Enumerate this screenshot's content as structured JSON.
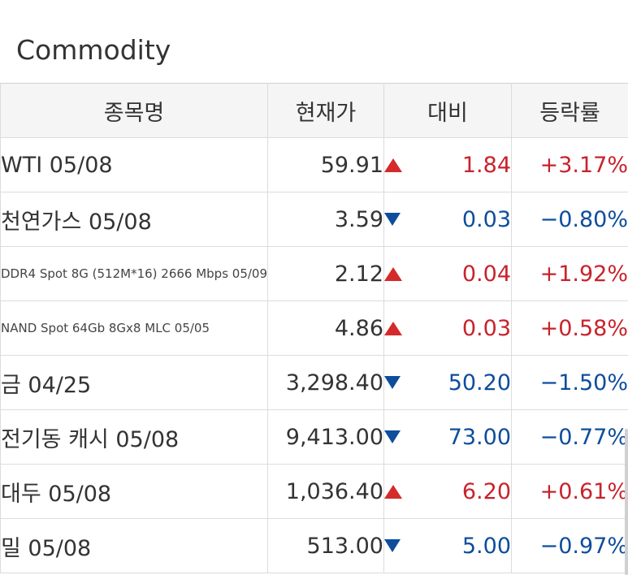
{
  "title": "Commodity",
  "headers": {
    "name": "종목명",
    "price": "현재가",
    "change": "대비",
    "rate": "등락률"
  },
  "colors": {
    "up": "#c8232c",
    "down": "#0e4d9c",
    "header_bg": "#f5f5f5",
    "border": "#dcdcdc"
  },
  "rows": [
    {
      "name": "WTI 05/08",
      "price": "59.91",
      "direction": "up",
      "arrow_icon": "triangle-up-icon",
      "change": "1.84",
      "rate": "+3.17%"
    },
    {
      "name": "천연가스 05/08",
      "price": "3.59",
      "direction": "down",
      "arrow_icon": "triangle-down-icon",
      "change": "0.03",
      "rate": "−0.80%"
    },
    {
      "name": "DDR4 Spot 8G (512M*16) 2666 Mbps 05/09",
      "price": "2.12",
      "direction": "up",
      "arrow_icon": "triangle-up-icon",
      "change": "0.04",
      "rate": "+1.92%"
    },
    {
      "name": "NAND Spot 64Gb 8Gx8 MLC 05/05",
      "price": "4.86",
      "direction": "up",
      "arrow_icon": "triangle-up-icon",
      "change": "0.03",
      "rate": "+0.58%"
    },
    {
      "name": "금 04/25",
      "price": "3,298.40",
      "direction": "down",
      "arrow_icon": "triangle-down-icon",
      "change": "50.20",
      "rate": "−1.50%"
    },
    {
      "name": "전기동 캐시 05/08",
      "price": "9,413.00",
      "direction": "down",
      "arrow_icon": "triangle-down-icon",
      "change": "73.00",
      "rate": "−0.77%"
    },
    {
      "name": "대두 05/08",
      "price": "1,036.40",
      "direction": "up",
      "arrow_icon": "triangle-up-icon",
      "change": "6.20",
      "rate": "+0.61%"
    },
    {
      "name": "밀 05/08",
      "price": "513.00",
      "direction": "down",
      "arrow_icon": "triangle-down-icon",
      "change": "5.00",
      "rate": "−0.97%"
    }
  ]
}
